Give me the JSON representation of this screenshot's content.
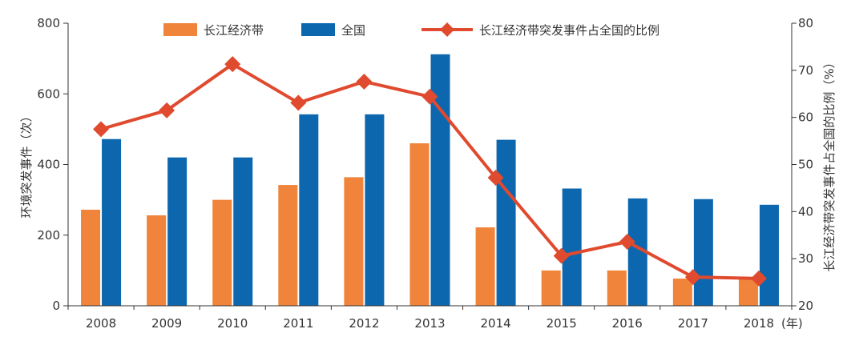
{
  "chart_data": {
    "type": "bar+line",
    "categories": [
      "2008",
      "2009",
      "2010",
      "2011",
      "2012",
      "2013",
      "2014",
      "2015",
      "2016",
      "2017",
      "2018"
    ],
    "x_unit_label": "(年)",
    "series": [
      {
        "name": "长江经济带",
        "kind": "bar",
        "axis": "left",
        "color": "#f0843a",
        "values": [
          272,
          256,
          300,
          342,
          364,
          460,
          222,
          100,
          100,
          77,
          75
        ]
      },
      {
        "name": "全国",
        "kind": "bar",
        "axis": "left",
        "color": "#0d67ae",
        "values": [
          472,
          420,
          420,
          542,
          542,
          712,
          470,
          332,
          304,
          302,
          286
        ]
      },
      {
        "name": "长江经济带突发事件占全国的比例",
        "kind": "line",
        "axis": "right",
        "color": "#e04a2e",
        "marker": "diamond",
        "values": [
          57.5,
          61.5,
          71.3,
          63.1,
          67.6,
          64.4,
          47.2,
          30.6,
          33.6,
          26.1,
          25.8
        ]
      }
    ],
    "y_left": {
      "label": "环境突发事件（次）",
      "ylim": [
        0,
        800
      ],
      "ticks": [
        "0",
        "200",
        "400",
        "600",
        "800"
      ]
    },
    "y_right": {
      "label": "长江经济带突发事件占全国的比例（%）",
      "ylim": [
        20,
        80
      ],
      "ticks": [
        "20",
        "30",
        "40",
        "50",
        "60",
        "70",
        "80"
      ]
    },
    "grid": false,
    "legend_position": "top"
  }
}
